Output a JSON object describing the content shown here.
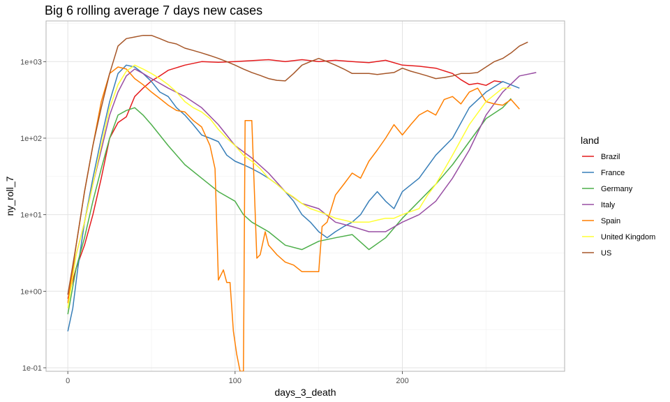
{
  "chart_data": {
    "type": "line",
    "title": "Big 6 rolling average 7 days new cases",
    "xlabel": "days_3_death",
    "ylabel": "ny_roll_7",
    "y_scale": "log10",
    "xlim": [
      -13,
      297
    ],
    "ylim": [
      0.09,
      3400
    ],
    "x_ticks": [
      0,
      100,
      200
    ],
    "x_tick_labels": [
      "0",
      "100",
      "200"
    ],
    "y_ticks": [
      0.1,
      1,
      10,
      100,
      1000
    ],
    "y_tick_labels": [
      "1e-01",
      "1e+00",
      "1e+01",
      "1e+02",
      "1e+03"
    ],
    "grid": true,
    "legend": {
      "title": "land",
      "position": "right"
    },
    "series": [
      {
        "name": "Brazil",
        "color": "#E41A1C",
        "x": [
          0,
          5,
          10,
          15,
          20,
          25,
          30,
          35,
          40,
          45,
          50,
          55,
          60,
          70,
          80,
          90,
          100,
          110,
          120,
          130,
          140,
          150,
          160,
          170,
          180,
          190,
          200,
          210,
          220,
          230,
          235,
          240,
          245,
          250,
          255,
          260
        ],
        "y": [
          0.8,
          2,
          4,
          10,
          30,
          100,
          160,
          190,
          350,
          450,
          560,
          650,
          770,
          900,
          1000,
          980,
          1000,
          1030,
          1060,
          1000,
          1060,
          1000,
          1040,
          1000,
          970,
          1040,
          900,
          870,
          820,
          700,
          580,
          500,
          520,
          490,
          560,
          540
        ]
      },
      {
        "name": "France",
        "color": "#377EB8",
        "x": [
          0,
          3,
          6,
          10,
          15,
          20,
          25,
          30,
          35,
          40,
          45,
          50,
          55,
          60,
          65,
          70,
          75,
          80,
          85,
          90,
          95,
          100,
          105,
          110,
          115,
          120,
          125,
          130,
          135,
          140,
          145,
          150,
          155,
          160,
          165,
          170,
          175,
          180,
          185,
          190,
          195,
          200,
          210,
          220,
          230,
          240,
          250,
          260,
          270
        ],
        "y": [
          0.3,
          0.6,
          2,
          8,
          30,
          100,
          300,
          700,
          900,
          850,
          700,
          550,
          400,
          350,
          250,
          200,
          150,
          110,
          100,
          90,
          60,
          50,
          45,
          40,
          35,
          30,
          25,
          20,
          15,
          10,
          8,
          6,
          5,
          6,
          7,
          8,
          10,
          15,
          20,
          15,
          12,
          20,
          30,
          60,
          100,
          250,
          400,
          550,
          450
        ]
      },
      {
        "name": "Germany",
        "color": "#4DAF4A",
        "x": [
          0,
          5,
          10,
          15,
          20,
          25,
          30,
          35,
          40,
          45,
          50,
          60,
          70,
          80,
          90,
          100,
          105,
          110,
          120,
          130,
          140,
          150,
          160,
          170,
          180,
          190,
          200,
          210,
          220,
          230,
          240,
          250,
          260,
          265
        ],
        "y": [
          0.5,
          2,
          5,
          15,
          40,
          100,
          200,
          230,
          250,
          200,
          150,
          80,
          45,
          30,
          20,
          15,
          10,
          8,
          6,
          4,
          3.5,
          4.5,
          5,
          5.5,
          3.5,
          5,
          9,
          15,
          25,
          45,
          90,
          180,
          250,
          330
        ]
      },
      {
        "name": "Italy",
        "color": "#984EA3",
        "x": [
          0,
          5,
          10,
          15,
          20,
          25,
          30,
          35,
          40,
          45,
          50,
          60,
          70,
          80,
          90,
          100,
          110,
          120,
          130,
          140,
          150,
          160,
          170,
          180,
          190,
          200,
          210,
          220,
          230,
          240,
          250,
          260,
          270,
          280
        ],
        "y": [
          0.9,
          3,
          8,
          25,
          70,
          200,
          400,
          650,
          800,
          700,
          600,
          450,
          350,
          250,
          150,
          80,
          55,
          35,
          20,
          14,
          12,
          8,
          7,
          6,
          6,
          8,
          10,
          15,
          30,
          70,
          200,
          400,
          650,
          720
        ]
      },
      {
        "name": "Spain",
        "color": "#FF7F00",
        "x": [
          0,
          5,
          10,
          15,
          20,
          25,
          30,
          35,
          40,
          45,
          50,
          55,
          60,
          65,
          70,
          75,
          80,
          85,
          88,
          90,
          93,
          95,
          97,
          99,
          101,
          103,
          105,
          106,
          107,
          108,
          110,
          113,
          115,
          118,
          120,
          125,
          130,
          135,
          140,
          145,
          150,
          152,
          155,
          160,
          165,
          170,
          175,
          180,
          185,
          190,
          195,
          200,
          205,
          210,
          215,
          220,
          225,
          230,
          235,
          240,
          245,
          250,
          255,
          260,
          265,
          270
        ],
        "y": [
          0.7,
          4,
          20,
          80,
          300,
          700,
          850,
          800,
          600,
          500,
          400,
          330,
          270,
          230,
          220,
          170,
          140,
          80,
          40,
          1.4,
          1.9,
          1.3,
          1.3,
          0.3,
          0.15,
          0.09,
          0.09,
          170,
          170,
          170,
          170,
          2.7,
          3,
          6,
          4,
          3,
          2.4,
          2.2,
          1.8,
          1.8,
          1.8,
          7,
          8,
          18,
          25,
          35,
          30,
          50,
          70,
          100,
          150,
          110,
          150,
          200,
          230,
          200,
          320,
          350,
          280,
          400,
          450,
          300,
          280,
          270,
          320,
          240
        ]
      },
      {
        "name": "United Kingdom",
        "color": "#FFFF33",
        "x": [
          0,
          5,
          10,
          15,
          20,
          25,
          30,
          35,
          40,
          45,
          50,
          55,
          60,
          65,
          70,
          75,
          80,
          85,
          90,
          95,
          100,
          105,
          110,
          115,
          120,
          125,
          130,
          135,
          140,
          145,
          150,
          155,
          160,
          165,
          170,
          175,
          180,
          185,
          190,
          195,
          200,
          205,
          210,
          215,
          220,
          230,
          240,
          250,
          260,
          265
        ],
        "y": [
          0.6,
          3,
          8,
          25,
          80,
          250,
          500,
          750,
          900,
          800,
          700,
          600,
          500,
          400,
          300,
          250,
          220,
          180,
          130,
          100,
          80,
          60,
          50,
          40,
          30,
          25,
          20,
          17,
          14,
          12,
          11,
          10,
          9,
          8.5,
          8,
          8,
          8,
          8.5,
          9,
          9,
          10,
          11,
          12,
          18,
          25,
          60,
          150,
          300,
          450,
          450
        ]
      },
      {
        "name": "US",
        "color": "#A65628",
        "x": [
          0,
          5,
          10,
          15,
          20,
          25,
          30,
          35,
          40,
          45,
          50,
          55,
          60,
          65,
          70,
          75,
          80,
          85,
          90,
          95,
          100,
          105,
          110,
          115,
          120,
          125,
          130,
          135,
          140,
          145,
          150,
          155,
          160,
          165,
          170,
          175,
          180,
          185,
          190,
          195,
          200,
          205,
          210,
          215,
          220,
          225,
          230,
          235,
          240,
          245,
          250,
          255,
          260,
          265,
          270,
          275
        ],
        "y": [
          0.9,
          4,
          20,
          80,
          250,
          700,
          1600,
          2000,
          2100,
          2200,
          2200,
          2000,
          1800,
          1700,
          1500,
          1400,
          1300,
          1200,
          1100,
          1000,
          900,
          800,
          720,
          660,
          600,
          570,
          560,
          700,
          900,
          1000,
          1100,
          1000,
          900,
          800,
          700,
          700,
          700,
          680,
          700,
          720,
          820,
          750,
          700,
          650,
          600,
          620,
          650,
          700,
          700,
          720,
          850,
          1000,
          1100,
          1300,
          1600,
          1800
        ]
      }
    ]
  }
}
